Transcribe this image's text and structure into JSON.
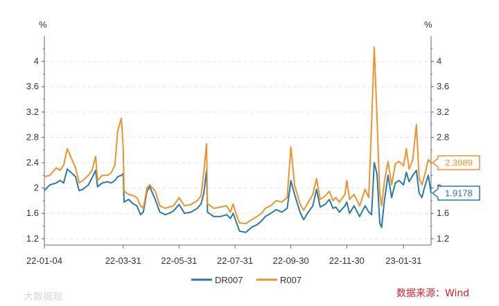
{
  "source": "数据来源：Wind",
  "watermark": "大数据观",
  "colors": {
    "DR007": "#2878a8",
    "R007": "#f0922b",
    "grid": "#e3e3e3",
    "axis": "#666666",
    "source": "#d4202a"
  },
  "chart_data": {
    "type": "line",
    "x_ticks": [
      "22-01-04",
      "22-03-31",
      "22-05-31",
      "22-07-31",
      "22-09-30",
      "22-11-30",
      "23-01-31"
    ],
    "xlim": [
      "22-01-04",
      "23-03-02"
    ],
    "ylabel_left": "%",
    "ylabel_right": "%",
    "ylim": [
      1.1,
      4.4
    ],
    "y_ticks": [
      "1.2",
      "1.6",
      "2",
      "2.4",
      "2.8",
      "3.2",
      "3.6",
      "4"
    ],
    "grid": true,
    "legend_position": "bottom",
    "series": [
      {
        "name": "DR007",
        "last_value_label": "1.9178",
        "points": [
          [
            "22-01-04",
            1.96
          ],
          [
            "22-01-10",
            2.05
          ],
          [
            "22-01-17",
            2.08
          ],
          [
            "22-01-21",
            2.12
          ],
          [
            "22-01-25",
            2.08
          ],
          [
            "22-01-29",
            2.3
          ],
          [
            "22-02-07",
            2.18
          ],
          [
            "22-02-11",
            1.96
          ],
          [
            "22-02-15",
            1.98
          ],
          [
            "22-02-21",
            2.05
          ],
          [
            "22-02-25",
            2.16
          ],
          [
            "22-03-01",
            2.28
          ],
          [
            "22-03-03",
            2.02
          ],
          [
            "22-03-08",
            2.08
          ],
          [
            "22-03-14",
            2.1
          ],
          [
            "22-03-18",
            2.08
          ],
          [
            "22-03-22",
            2.12
          ],
          [
            "22-03-25",
            2.18
          ],
          [
            "22-03-29",
            2.2
          ],
          [
            "22-03-31",
            2.23
          ],
          [
            "22-04-01",
            1.78
          ],
          [
            "22-04-06",
            1.82
          ],
          [
            "22-04-11",
            1.75
          ],
          [
            "22-04-15",
            1.72
          ],
          [
            "22-04-19",
            1.58
          ],
          [
            "22-04-22",
            1.62
          ],
          [
            "22-04-26",
            1.95
          ],
          [
            "22-04-29",
            2.02
          ],
          [
            "22-05-05",
            1.82
          ],
          [
            "22-05-10",
            1.62
          ],
          [
            "22-05-16",
            1.58
          ],
          [
            "22-05-20",
            1.6
          ],
          [
            "22-05-25",
            1.64
          ],
          [
            "22-05-31",
            1.74
          ],
          [
            "22-06-06",
            1.6
          ],
          [
            "22-06-13",
            1.62
          ],
          [
            "22-06-20",
            1.68
          ],
          [
            "22-06-24",
            1.75
          ],
          [
            "22-06-27",
            1.92
          ],
          [
            "22-06-30",
            2.28
          ],
          [
            "22-07-01",
            1.62
          ],
          [
            "22-07-08",
            1.55
          ],
          [
            "22-07-15",
            1.55
          ],
          [
            "22-07-22",
            1.58
          ],
          [
            "22-07-26",
            1.52
          ],
          [
            "22-07-29",
            1.6
          ],
          [
            "22-08-01",
            1.48
          ],
          [
            "22-08-05",
            1.32
          ],
          [
            "22-08-12",
            1.3
          ],
          [
            "22-08-18",
            1.38
          ],
          [
            "22-08-24",
            1.42
          ],
          [
            "22-08-29",
            1.48
          ],
          [
            "22-09-02",
            1.55
          ],
          [
            "22-09-08",
            1.6
          ],
          [
            "22-09-14",
            1.66
          ],
          [
            "22-09-20",
            1.62
          ],
          [
            "22-09-26",
            1.68
          ],
          [
            "22-09-30",
            2.12
          ],
          [
            "22-10-04",
            1.9
          ],
          [
            "22-10-10",
            1.62
          ],
          [
            "22-10-14",
            1.5
          ],
          [
            "22-10-18",
            1.6
          ],
          [
            "22-10-24",
            1.72
          ],
          [
            "22-10-28",
            1.98
          ],
          [
            "22-11-01",
            1.7
          ],
          [
            "22-11-07",
            1.75
          ],
          [
            "22-11-11",
            1.82
          ],
          [
            "22-11-15",
            1.68
          ],
          [
            "22-11-18",
            1.7
          ],
          [
            "22-11-22",
            1.62
          ],
          [
            "22-11-28",
            1.72
          ],
          [
            "22-11-30",
            1.78
          ],
          [
            "22-12-03",
            1.6
          ],
          [
            "22-12-08",
            1.72
          ],
          [
            "22-12-14",
            1.55
          ],
          [
            "22-12-20",
            1.72
          ],
          [
            "22-12-24",
            1.62
          ],
          [
            "22-12-27",
            1.58
          ],
          [
            "22-12-30",
            2.4
          ],
          [
            "23-01-02",
            2.22
          ],
          [
            "23-01-05",
            1.45
          ],
          [
            "23-01-07",
            1.38
          ],
          [
            "23-01-10",
            1.8
          ],
          [
            "23-01-14",
            2.2
          ],
          [
            "23-01-18",
            1.85
          ],
          [
            "23-01-22",
            2.08
          ],
          [
            "23-01-26",
            2.12
          ],
          [
            "23-01-31",
            2.05
          ],
          [
            "23-02-03",
            2.25
          ],
          [
            "23-02-06",
            2.1
          ],
          [
            "23-02-10",
            2.2
          ],
          [
            "23-02-14",
            2.28
          ],
          [
            "23-02-17",
            1.92
          ],
          [
            "23-02-20",
            1.85
          ],
          [
            "23-02-23",
            2.02
          ],
          [
            "23-02-27",
            2.2
          ],
          [
            "23-03-02",
            1.92
          ]
        ]
      },
      {
        "name": "R007",
        "last_value_label": "2.3989",
        "points": [
          [
            "22-01-04",
            2.18
          ],
          [
            "22-01-10",
            2.2
          ],
          [
            "22-01-17",
            2.32
          ],
          [
            "22-01-21",
            2.28
          ],
          [
            "22-01-25",
            2.36
          ],
          [
            "22-01-29",
            2.62
          ],
          [
            "22-02-07",
            2.32
          ],
          [
            "22-02-11",
            2.08
          ],
          [
            "22-02-15",
            2.12
          ],
          [
            "22-02-21",
            2.2
          ],
          [
            "22-02-25",
            2.28
          ],
          [
            "22-03-01",
            2.5
          ],
          [
            "22-03-03",
            2.12
          ],
          [
            "22-03-08",
            2.2
          ],
          [
            "22-03-14",
            2.2
          ],
          [
            "22-03-18",
            2.24
          ],
          [
            "22-03-22",
            2.36
          ],
          [
            "22-03-25",
            2.9
          ],
          [
            "22-03-29",
            3.1
          ],
          [
            "22-03-31",
            2.65
          ],
          [
            "22-04-01",
            1.95
          ],
          [
            "22-04-06",
            1.9
          ],
          [
            "22-04-11",
            1.88
          ],
          [
            "22-04-15",
            1.85
          ],
          [
            "22-04-19",
            1.72
          ],
          [
            "22-04-22",
            1.68
          ],
          [
            "22-04-26",
            2.0
          ],
          [
            "22-04-29",
            2.05
          ],
          [
            "22-05-05",
            1.95
          ],
          [
            "22-05-10",
            1.72
          ],
          [
            "22-05-16",
            1.68
          ],
          [
            "22-05-20",
            1.7
          ],
          [
            "22-05-25",
            1.72
          ],
          [
            "22-05-31",
            1.85
          ],
          [
            "22-06-06",
            1.72
          ],
          [
            "22-06-13",
            1.74
          ],
          [
            "22-06-20",
            1.8
          ],
          [
            "22-06-24",
            1.88
          ],
          [
            "22-06-27",
            2.25
          ],
          [
            "22-06-30",
            2.7
          ],
          [
            "22-07-01",
            1.75
          ],
          [
            "22-07-08",
            1.68
          ],
          [
            "22-07-15",
            1.7
          ],
          [
            "22-07-22",
            1.72
          ],
          [
            "22-07-26",
            1.62
          ],
          [
            "22-07-29",
            1.75
          ],
          [
            "22-08-01",
            1.6
          ],
          [
            "22-08-05",
            1.45
          ],
          [
            "22-08-12",
            1.44
          ],
          [
            "22-08-18",
            1.5
          ],
          [
            "22-08-24",
            1.55
          ],
          [
            "22-08-29",
            1.6
          ],
          [
            "22-09-02",
            1.68
          ],
          [
            "22-09-08",
            1.72
          ],
          [
            "22-09-14",
            1.8
          ],
          [
            "22-09-20",
            1.78
          ],
          [
            "22-09-26",
            1.85
          ],
          [
            "22-09-30",
            2.65
          ],
          [
            "22-10-04",
            2.05
          ],
          [
            "22-10-10",
            1.75
          ],
          [
            "22-10-14",
            1.65
          ],
          [
            "22-10-18",
            1.75
          ],
          [
            "22-10-24",
            1.9
          ],
          [
            "22-10-28",
            2.15
          ],
          [
            "22-11-01",
            1.82
          ],
          [
            "22-11-07",
            1.88
          ],
          [
            "22-11-11",
            1.95
          ],
          [
            "22-11-15",
            1.8
          ],
          [
            "22-11-18",
            1.85
          ],
          [
            "22-11-22",
            1.78
          ],
          [
            "22-11-28",
            1.9
          ],
          [
            "22-11-30",
            2.12
          ],
          [
            "22-12-03",
            1.82
          ],
          [
            "22-12-08",
            1.9
          ],
          [
            "22-12-14",
            1.72
          ],
          [
            "22-12-20",
            1.98
          ],
          [
            "22-12-24",
            1.85
          ],
          [
            "22-12-27",
            3.0
          ],
          [
            "22-12-30",
            4.22
          ],
          [
            "23-01-02",
            3.1
          ],
          [
            "23-01-05",
            1.9
          ],
          [
            "23-01-07",
            1.72
          ],
          [
            "23-01-10",
            2.1
          ],
          [
            "23-01-14",
            2.42
          ],
          [
            "23-01-18",
            2.05
          ],
          [
            "23-01-22",
            2.38
          ],
          [
            "23-01-26",
            2.42
          ],
          [
            "23-01-31",
            2.35
          ],
          [
            "23-02-03",
            2.62
          ],
          [
            "23-02-06",
            2.3
          ],
          [
            "23-02-10",
            2.45
          ],
          [
            "23-02-14",
            3.0
          ],
          [
            "23-02-17",
            2.15
          ],
          [
            "23-02-20",
            2.05
          ],
          [
            "23-02-23",
            2.2
          ],
          [
            "23-02-27",
            2.45
          ],
          [
            "23-03-02",
            2.4
          ]
        ]
      }
    ]
  }
}
